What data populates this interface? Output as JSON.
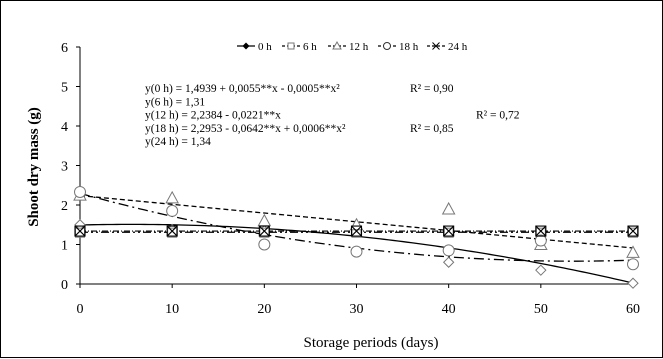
{
  "chart_data": {
    "type": "scatter",
    "xlabel": "Storage periods (days)",
    "ylabel": "Shoot dry mass (g)",
    "xlim": [
      0,
      60
    ],
    "ylim": [
      0,
      6
    ],
    "xticks": [
      "0",
      "10",
      "20",
      "30",
      "40",
      "50",
      "60"
    ],
    "yticks": [
      "0",
      "1",
      "2",
      "3",
      "4",
      "5",
      "6"
    ],
    "grid": false,
    "legend_position": "top-center",
    "x": [
      0,
      10,
      20,
      30,
      40,
      50,
      60
    ],
    "series": [
      {
        "name": "0 h",
        "marker": "diamond",
        "line": "solid",
        "values": [
          1.5,
          1.38,
          1.35,
          1.35,
          0.55,
          0.35,
          0.02
        ],
        "fit": {
          "type": "quadratic",
          "b0": 1.4939,
          "b1": 0.0055,
          "b2": -0.0005
        }
      },
      {
        "name": "6 h",
        "marker": "square",
        "line": "dash-dot-dot",
        "values": [
          1.3,
          1.3,
          1.3,
          1.3,
          1.3,
          1.3,
          1.3
        ],
        "fit": {
          "type": "constant",
          "b0": 1.31
        }
      },
      {
        "name": "12 h",
        "marker": "triangle",
        "line": "dashed",
        "values": [
          2.25,
          2.18,
          1.6,
          1.5,
          1.9,
          1.0,
          0.8
        ],
        "fit": {
          "type": "linear",
          "b0": 2.2384,
          "b1": -0.0221
        }
      },
      {
        "name": "18 h",
        "marker": "circle",
        "line": "dash-dot",
        "values": [
          2.33,
          1.85,
          1.0,
          0.82,
          0.85,
          1.1,
          0.5
        ],
        "fit": {
          "type": "quadratic",
          "b0": 2.2953,
          "b1": -0.0642,
          "b2": 0.0006
        }
      },
      {
        "name": "24 h",
        "marker": "asterisk",
        "line": "dash-dot-thin",
        "values": [
          1.34,
          1.34,
          1.34,
          1.34,
          1.34,
          1.34,
          1.34
        ],
        "fit": {
          "type": "constant",
          "b0": 1.34
        }
      }
    ],
    "annotations": [
      {
        "eq": "y(0 h) = 1,4939 + 0,0055**x - 0,0005**x²",
        "r2": "R² = 0,90"
      },
      {
        "eq": "y(6 h) = 1,31",
        "r2": ""
      },
      {
        "eq": "y(12 h) = 2,2384 - 0,0221**x",
        "r2": "R² = 0,72"
      },
      {
        "eq": "y(18 h) = 2,2953 - 0,0642**x + 0,0006**x²",
        "r2": "R² = 0,85"
      },
      {
        "eq": "y(24 h) = 1,34",
        "r2": ""
      }
    ],
    "legend_labels": [
      "0 h",
      "6 h",
      "12 h",
      "18 h",
      "24 h"
    ]
  }
}
